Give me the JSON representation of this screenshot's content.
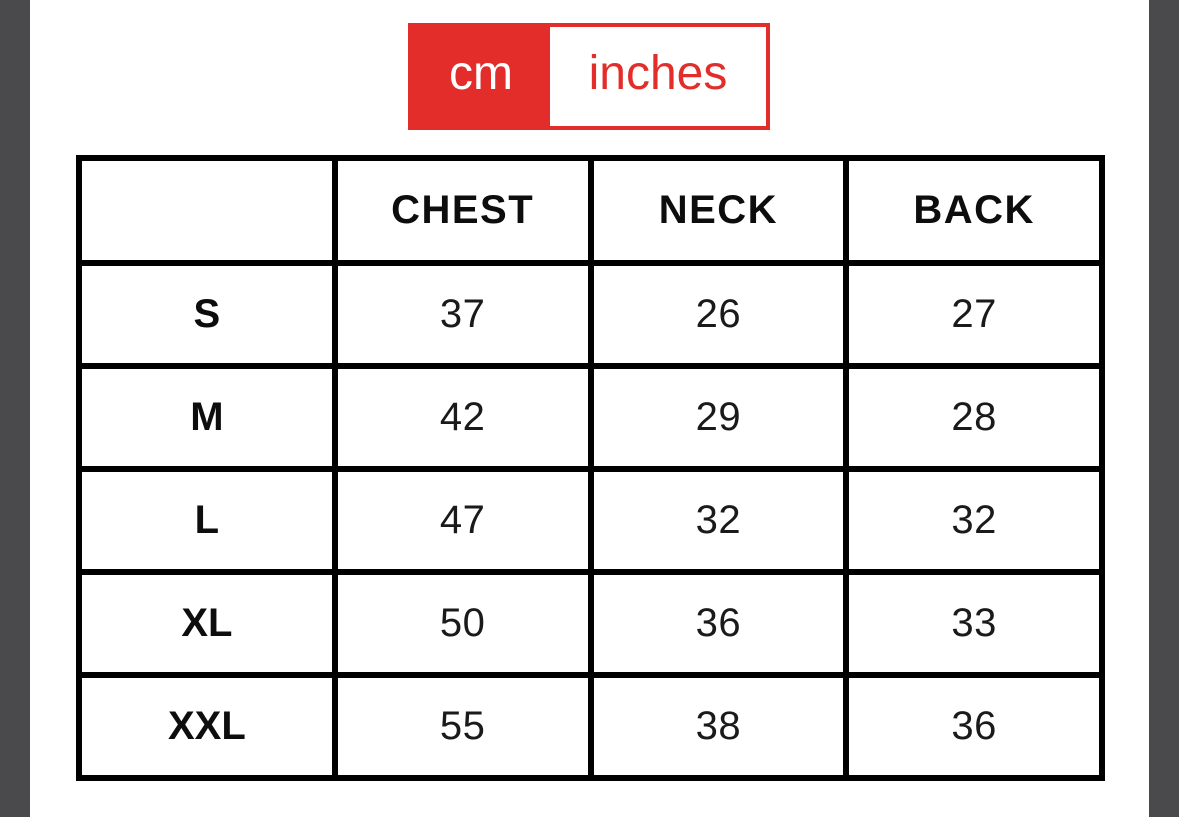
{
  "page": {
    "background_color": "#ffffff",
    "edge_bar_color": "#4a4a4d"
  },
  "unit_toggle": {
    "accent_color": "#e32d2b",
    "selected": "cm",
    "options": [
      {
        "label": "cm",
        "selected": true
      },
      {
        "label": "inches",
        "selected": false
      }
    ]
  },
  "size_chart": {
    "border_color": "#000000",
    "columns": [
      "",
      "CHEST",
      "NECK",
      "BACK"
    ],
    "rows": [
      {
        "size": "S",
        "chest": "37",
        "neck": "26",
        "back": "27"
      },
      {
        "size": "M",
        "chest": "42",
        "neck": "29",
        "back": "28"
      },
      {
        "size": "L",
        "chest": "47",
        "neck": "32",
        "back": "32"
      },
      {
        "size": "XL",
        "chest": "50",
        "neck": "36",
        "back": "33"
      },
      {
        "size": "XXL",
        "chest": "55",
        "neck": "38",
        "back": "36"
      }
    ]
  }
}
